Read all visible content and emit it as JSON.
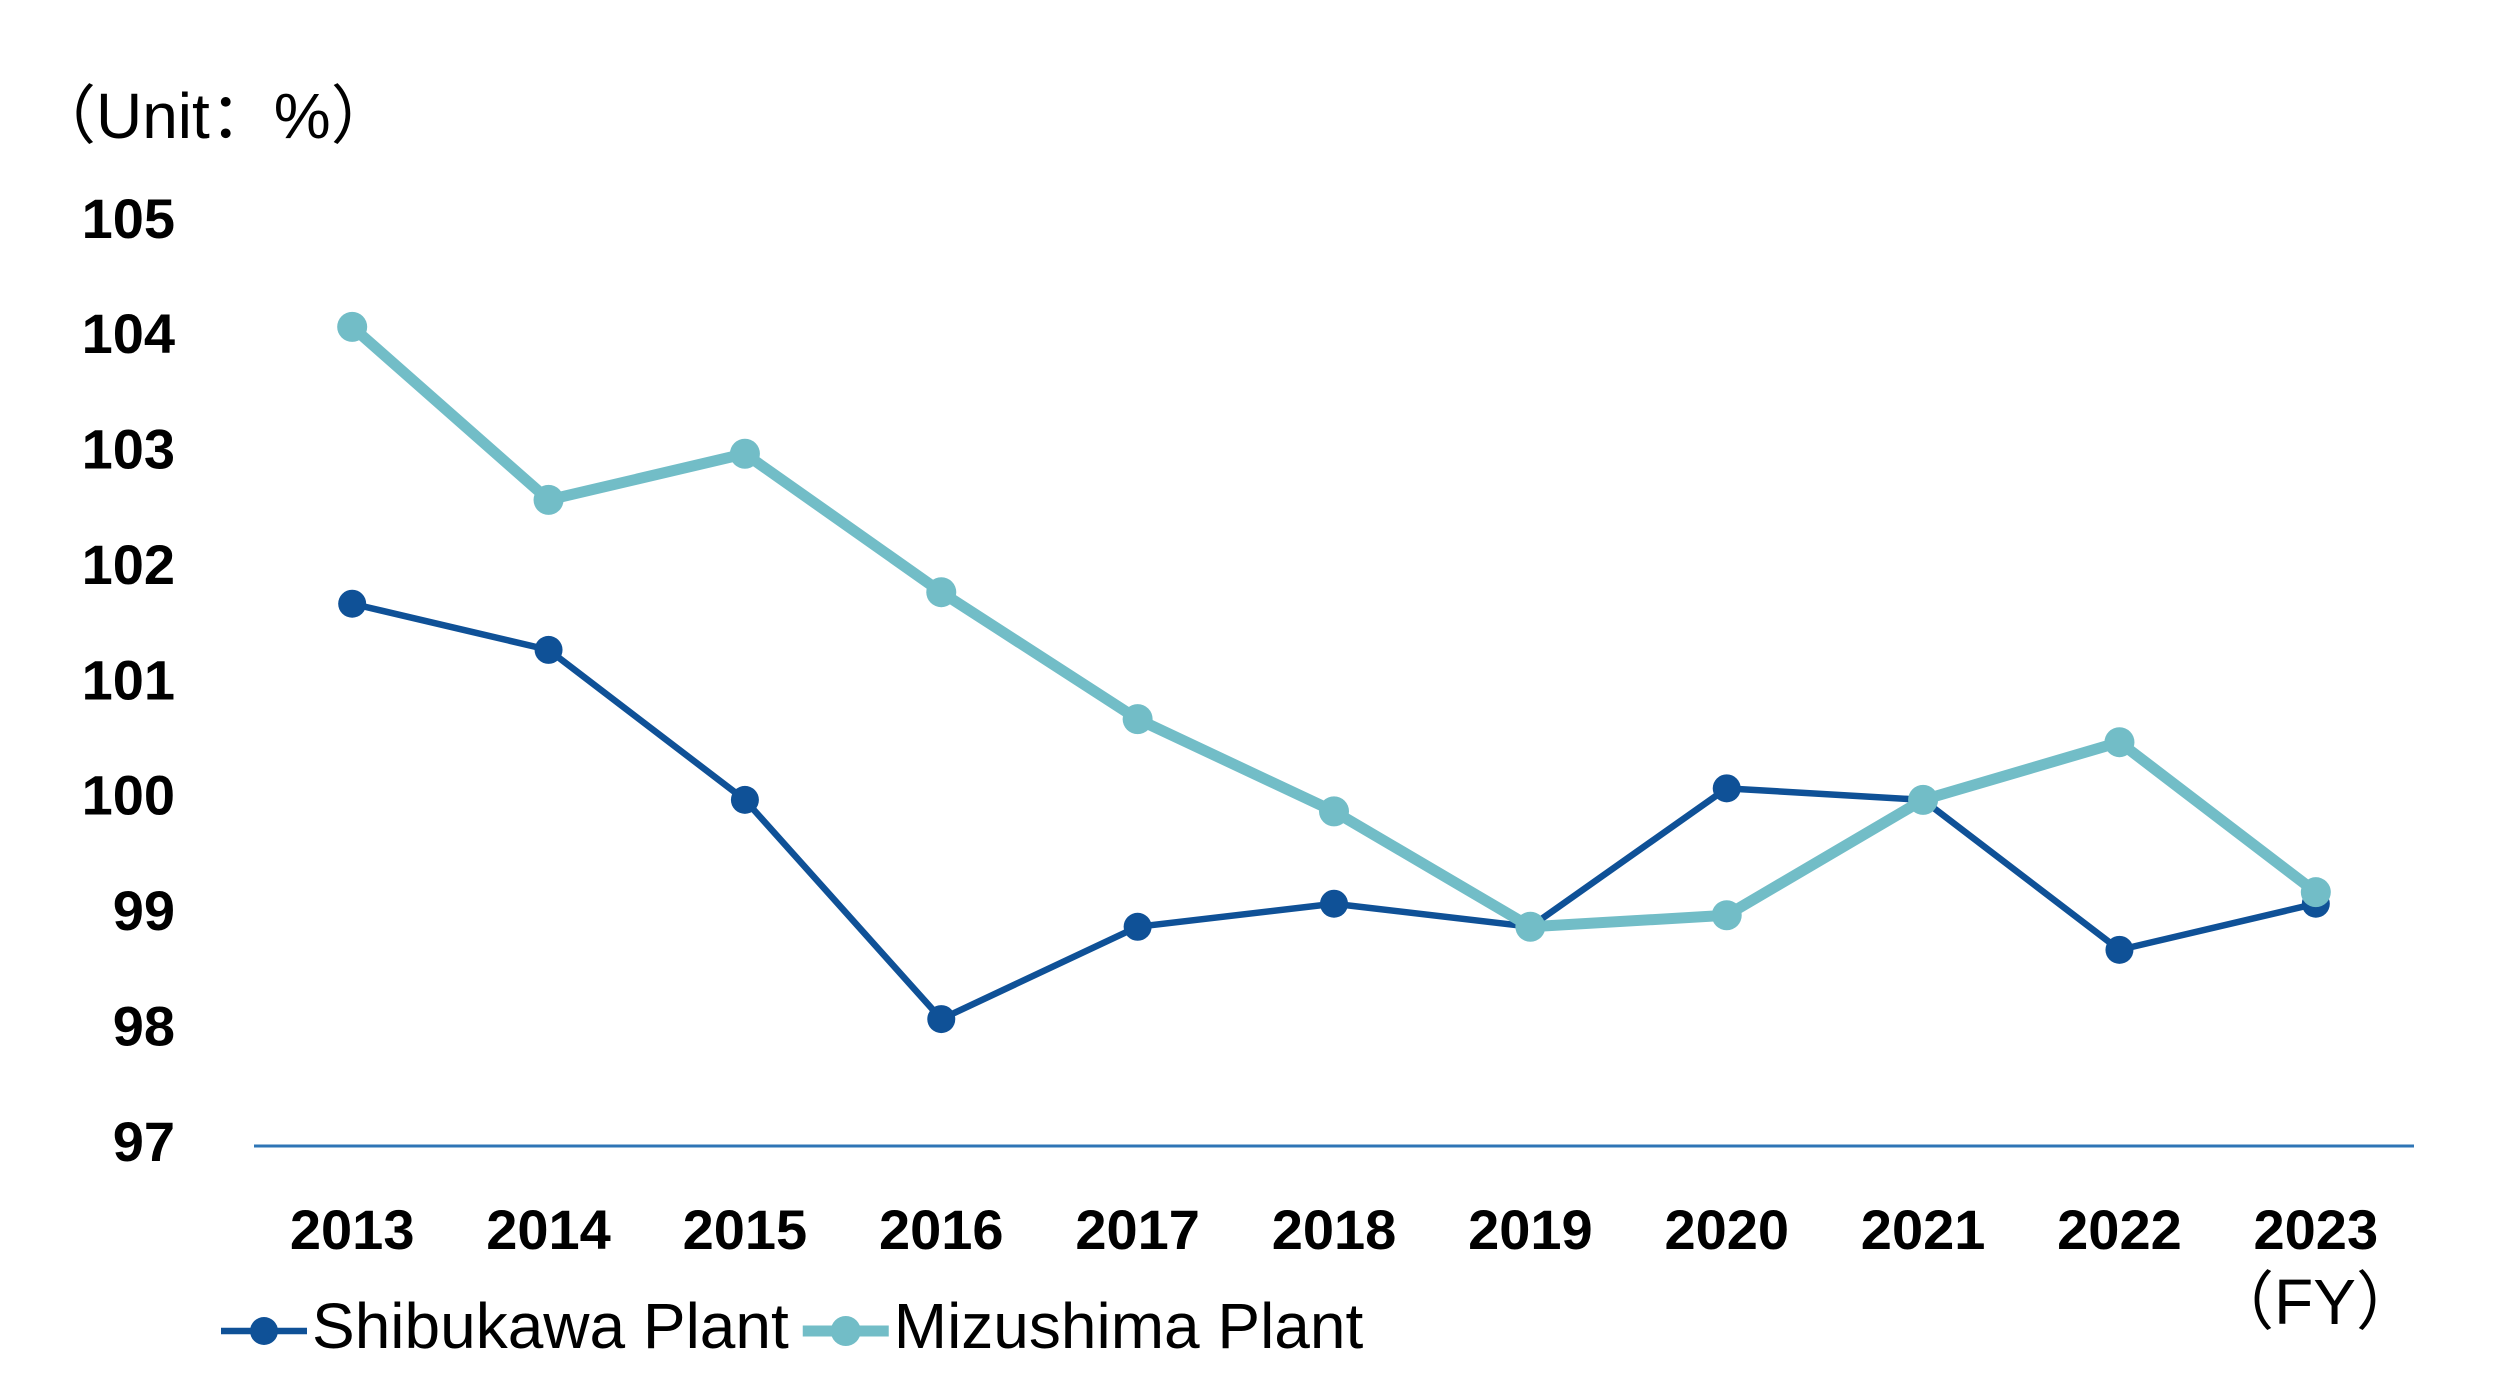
{
  "chart_data": {
    "type": "line",
    "unit_label": "（Unit：%）",
    "x_label": "（FY）",
    "categories": [
      "2013",
      "2014",
      "2015",
      "2016",
      "2017",
      "2018",
      "2019",
      "2020",
      "2021",
      "2022",
      "2023"
    ],
    "series": [
      {
        "name": "Shibukawa Plant",
        "color": "#0f5197",
        "values": [
          101.7,
          101.3,
          100.0,
          98.1,
          98.9,
          99.1,
          98.9,
          100.1,
          100.0,
          98.7,
          99.1
        ]
      },
      {
        "name": "Mizushima Plant",
        "color": "#72bdc7",
        "values": [
          104.1,
          102.6,
          103.0,
          101.8,
          100.7,
          99.9,
          98.9,
          99.0,
          100.0,
          100.5,
          99.2
        ]
      }
    ],
    "ylim": [
      97,
      105
    ],
    "yticks": [
      97,
      98,
      99,
      100,
      101,
      102,
      103,
      104,
      105
    ],
    "grid": false,
    "legend": "bottom-left",
    "axis_color": "#2e75b6"
  }
}
